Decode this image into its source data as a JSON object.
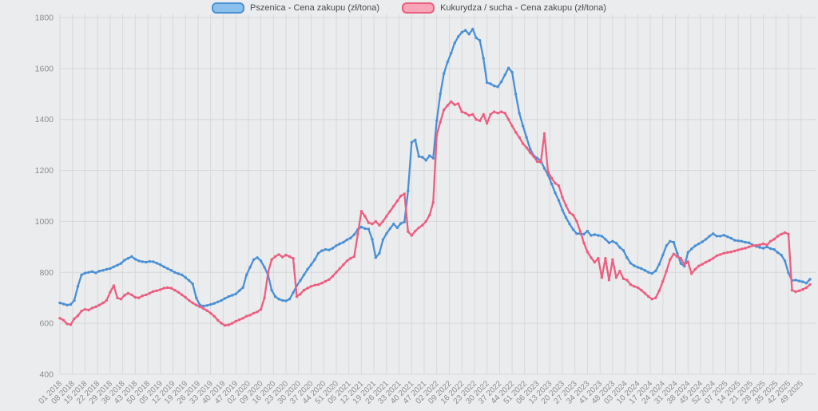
{
  "legend": {
    "items": [
      {
        "label": "Pszenica - Cena zakupu (zł/tona)",
        "fill": "#8cc0ec",
        "stroke": "#4a90d5"
      },
      {
        "label": "Kukurydza / sucha - Cena zakupu (zł/tona)",
        "fill": "#f7a6ba",
        "stroke": "#ec5f80"
      }
    ]
  },
  "colors": {
    "background": "#ebecee",
    "grid": "#d7d8da",
    "axis_text": "#8d8d8d",
    "wheat_line": "#4a90d5",
    "corn_line": "#ec5f80"
  },
  "chart_data": {
    "type": "line",
    "title": "",
    "xlabel": "",
    "ylabel": "",
    "x_unit": "ISO week (week number + year), weekly price series sampled every 2 weeks",
    "week_step": 2,
    "first_week": "01 2018",
    "last_week": "~51 2025",
    "ylim": [
      400,
      1800
    ],
    "y_ticks": [
      400,
      600,
      800,
      1000,
      1200,
      1400,
      1600,
      1800
    ],
    "grid": true,
    "legend_position": "top-center",
    "x_tick_labels": [
      "01 2018",
      "08 2018",
      "15 2018",
      "22 2018",
      "29 2018",
      "36 2018",
      "43 2018",
      "50 2018",
      "05 2019",
      "12 2019",
      "19 2019",
      "26 2019",
      "33 2019",
      "40 2019",
      "47 2019",
      "02 2020",
      "09 2020",
      "16 2020",
      "23 2020",
      "30 2020",
      "37 2020",
      "44 2020",
      "51 2020",
      "05 2021",
      "12 2021",
      "19 2021",
      "26 2021",
      "33 2021",
      "40 2021",
      "47 2021",
      "02 2022",
      "09 2022",
      "16 2022",
      "23 2022",
      "30 2022",
      "37 2022",
      "44 2022",
      "51 2022",
      "06 2023",
      "13 2023",
      "20 2023",
      "27 2023",
      "34 2023",
      "41 2023",
      "48 2023",
      "03 2024",
      "10 2024",
      "17 2024",
      "24 2024",
      "31 2024",
      "38 2024",
      "45 2024",
      "52 2024",
      "07 2025",
      "14 2025",
      "21 2025",
      "28 2025",
      "35 2025",
      "42 2025",
      "49 2025"
    ],
    "x_ticks_every_weeks": 7,
    "series": [
      {
        "name": "Pszenica - Cena zakupu (zł/tona)",
        "color": "#4a90d5",
        "values": [
          680,
          676,
          672,
          674,
          690,
          745,
          790,
          797,
          800,
          803,
          798,
          805,
          808,
          812,
          815,
          822,
          828,
          835,
          848,
          855,
          862,
          852,
          845,
          842,
          840,
          843,
          842,
          836,
          830,
          822,
          815,
          808,
          800,
          795,
          790,
          780,
          768,
          755,
          700,
          672,
          668,
          670,
          674,
          678,
          684,
          690,
          698,
          705,
          710,
          715,
          728,
          740,
          790,
          820,
          850,
          858,
          845,
          820,
          790,
          730,
          705,
          695,
          690,
          688,
          695,
          720,
          748,
          768,
          790,
          812,
          830,
          850,
          875,
          885,
          890,
          888,
          895,
          905,
          912,
          918,
          928,
          935,
          948,
          968,
          978,
          972,
          970,
          930,
          858,
          875,
          928,
          952,
          972,
          990,
          975,
          992,
          998,
          1120,
          1310,
          1320,
          1255,
          1252,
          1240,
          1258,
          1248,
          1395,
          1500,
          1580,
          1625,
          1660,
          1700,
          1725,
          1742,
          1750,
          1735,
          1755,
          1720,
          1710,
          1640,
          1545,
          1540,
          1532,
          1528,
          1548,
          1575,
          1602,
          1585,
          1500,
          1425,
          1375,
          1330,
          1285,
          1258,
          1248,
          1238,
          1208,
          1182,
          1148,
          1112,
          1082,
          1045,
          1015,
          990,
          968,
          952,
          952,
          950,
          962,
          945,
          948,
          945,
          942,
          930,
          916,
          922,
          915,
          898,
          886,
          858,
          836,
          826,
          820,
          815,
          808,
          800,
          796,
          806,
          832,
          868,
          905,
          922,
          918,
          875,
          835,
          824,
          878,
          892,
          904,
          912,
          920,
          930,
          942,
          952,
          942,
          942,
          946,
          940,
          934,
          926,
          924,
          922,
          918,
          916,
          908,
          902,
          898,
          895,
          900,
          893,
          890,
          878,
          868,
          845,
          798,
          768,
          770,
          766,
          763,
          758,
          773
        ]
      },
      {
        "name": "Kukurydza / sucha - Cena zakupu (zł/tona)",
        "color": "#ec5f80",
        "values": [
          620,
          612,
          598,
          595,
          618,
          630,
          648,
          655,
          652,
          660,
          665,
          672,
          680,
          690,
          722,
          748,
          700,
          695,
          710,
          718,
          712,
          702,
          700,
          708,
          712,
          718,
          725,
          728,
          732,
          738,
          740,
          738,
          730,
          722,
          712,
          702,
          690,
          680,
          672,
          665,
          658,
          650,
          640,
          628,
          612,
          600,
          592,
          594,
          600,
          608,
          614,
          620,
          628,
          632,
          640,
          645,
          655,
          700,
          800,
          850,
          862,
          870,
          860,
          868,
          862,
          855,
          705,
          715,
          730,
          738,
          745,
          750,
          752,
          758,
          765,
          772,
          785,
          800,
          815,
          830,
          845,
          855,
          862,
          950,
          1040,
          1020,
          995,
          990,
          1000,
          985,
          1000,
          1020,
          1040,
          1060,
          1080,
          1100,
          1108,
          960,
          945,
          962,
          975,
          985,
          1000,
          1025,
          1075,
          1340,
          1390,
          1438,
          1455,
          1470,
          1458,
          1462,
          1430,
          1425,
          1416,
          1420,
          1400,
          1395,
          1420,
          1385,
          1420,
          1430,
          1425,
          1430,
          1425,
          1400,
          1375,
          1350,
          1330,
          1305,
          1290,
          1270,
          1255,
          1235,
          1232,
          1345,
          1195,
          1170,
          1150,
          1140,
          1095,
          1062,
          1035,
          1025,
          1000,
          960,
          915,
          880,
          858,
          840,
          855,
          780,
          855,
          770,
          850,
          780,
          805,
          775,
          770,
          752,
          745,
          740,
          730,
          718,
          705,
          695,
          700,
          728,
          765,
          805,
          850,
          872,
          862,
          855,
          830,
          842,
          795,
          812,
          825,
          832,
          840,
          847,
          855,
          865,
          870,
          875,
          878,
          880,
          884,
          888,
          892,
          895,
          900,
          905,
          906,
          908,
          912,
          908,
          922,
          930,
          942,
          950,
          956,
          950,
          730,
          724,
          728,
          733,
          740,
          752
        ]
      }
    ]
  }
}
